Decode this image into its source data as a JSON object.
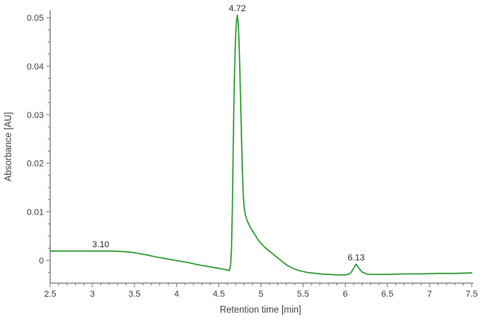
{
  "chart_data": {
    "type": "line",
    "title": "",
    "xlabel": "Retention time [min]",
    "ylabel": "Absorbance [AU]",
    "xlim": [
      2.5,
      7.5
    ],
    "ylim": [
      -0.0047,
      0.0515
    ],
    "grid": false,
    "legend": false,
    "x_major_ticks": [
      2.5,
      3,
      3.5,
      4,
      4.5,
      5,
      5.5,
      6,
      6.5,
      7,
      7.5
    ],
    "x_tick_labels": [
      "2.5",
      "3",
      "3.5",
      "4",
      "4.5",
      "5",
      "5.5",
      "6",
      "6.5",
      "7",
      "7.5"
    ],
    "x_minor_step": 0.1,
    "y_major_ticks": [
      0,
      0.01,
      0.02,
      0.03,
      0.04,
      0.05
    ],
    "y_tick_labels": [
      "0",
      "0.01",
      "0.02",
      "0.03",
      "0.04",
      "0.05"
    ],
    "y_minor_step": 0.0025,
    "colors": {
      "line": "#2d9b32",
      "axis": "#7d7d7d",
      "tick_text": "#3f3f3f",
      "annotation_text": "#303030",
      "background": "#ffffff"
    },
    "peak_labels": [
      {
        "text": "3.10",
        "t": 3.1,
        "value": 0.0019
      },
      {
        "text": "4.72",
        "t": 4.72,
        "value": 0.0505
      },
      {
        "text": "6.13",
        "t": 6.13,
        "value": -0.0008
      }
    ],
    "series": [
      {
        "name": "absorbance",
        "points": [
          [
            2.5,
            0.0019
          ],
          [
            2.7,
            0.0019
          ],
          [
            2.9,
            0.0019
          ],
          [
            3.1,
            0.0019
          ],
          [
            3.25,
            0.0019
          ],
          [
            3.35,
            0.0018
          ],
          [
            3.45,
            0.0017
          ],
          [
            3.55,
            0.0014
          ],
          [
            3.65,
            0.0011
          ],
          [
            3.75,
            0.0007
          ],
          [
            3.85,
            0.0004
          ],
          [
            3.95,
            0.0001
          ],
          [
            4.05,
            -0.0002
          ],
          [
            4.15,
            -0.0005
          ],
          [
            4.25,
            -0.0009
          ],
          [
            4.35,
            -0.0012
          ],
          [
            4.45,
            -0.0015
          ],
          [
            4.55,
            -0.0018
          ],
          [
            4.6,
            -0.002
          ],
          [
            4.625,
            -0.0021
          ],
          [
            4.64,
            -0.001
          ],
          [
            4.65,
            0.002
          ],
          [
            4.66,
            0.01
          ],
          [
            4.67,
            0.022
          ],
          [
            4.68,
            0.033
          ],
          [
            4.69,
            0.041
          ],
          [
            4.7,
            0.0465
          ],
          [
            4.71,
            0.0495
          ],
          [
            4.72,
            0.0505
          ],
          [
            4.73,
            0.049
          ],
          [
            4.74,
            0.045
          ],
          [
            4.75,
            0.039
          ],
          [
            4.76,
            0.032
          ],
          [
            4.77,
            0.025
          ],
          [
            4.78,
            0.0185
          ],
          [
            4.79,
            0.0137
          ],
          [
            4.8,
            0.011
          ],
          [
            4.815,
            0.0094
          ],
          [
            4.84,
            0.008
          ],
          [
            4.88,
            0.0066
          ],
          [
            4.92,
            0.0055
          ],
          [
            4.96,
            0.0044
          ],
          [
            5.0,
            0.0035
          ],
          [
            5.05,
            0.0026
          ],
          [
            5.1,
            0.0019
          ],
          [
            5.15,
            0.0012
          ],
          [
            5.2,
            0.0005
          ],
          [
            5.25,
            -0.0002
          ],
          [
            5.3,
            -0.0009
          ],
          [
            5.35,
            -0.0014
          ],
          [
            5.4,
            -0.0018
          ],
          [
            5.45,
            -0.0021
          ],
          [
            5.5,
            -0.0023
          ],
          [
            5.55,
            -0.0025
          ],
          [
            5.6,
            -0.0026
          ],
          [
            5.7,
            -0.0028
          ],
          [
            5.8,
            -0.0029
          ],
          [
            5.9,
            -0.003
          ],
          [
            6.0,
            -0.003
          ],
          [
            6.04,
            -0.0029
          ],
          [
            6.07,
            -0.0025
          ],
          [
            6.1,
            -0.0016
          ],
          [
            6.13,
            -0.0008
          ],
          [
            6.16,
            -0.0016
          ],
          [
            6.2,
            -0.0024
          ],
          [
            6.25,
            -0.0028
          ],
          [
            6.3,
            -0.0029
          ],
          [
            6.4,
            -0.0029
          ],
          [
            6.5,
            -0.0029
          ],
          [
            6.7,
            -0.0028
          ],
          [
            6.9,
            -0.0028
          ],
          [
            7.1,
            -0.0027
          ],
          [
            7.3,
            -0.0027
          ],
          [
            7.5,
            -0.0026
          ]
        ]
      }
    ]
  }
}
